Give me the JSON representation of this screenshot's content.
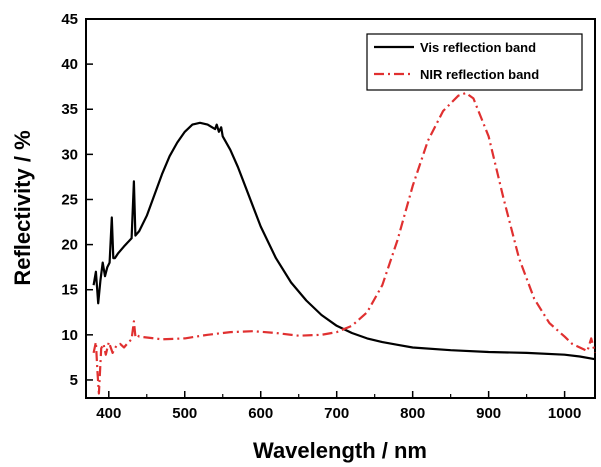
{
  "chart_data": {
    "type": "line",
    "xlabel": "Wavelength / nm",
    "ylabel": "Reflectivity / %",
    "xlim": [
      370,
      1040
    ],
    "ylim": [
      3,
      45
    ],
    "x_ticks": [
      400,
      500,
      600,
      700,
      800,
      900,
      1000
    ],
    "y_ticks": [
      5,
      10,
      15,
      20,
      25,
      30,
      35,
      40,
      45
    ],
    "grid": false,
    "legend_position": "top-right",
    "series": [
      {
        "name": "Vis reflection band",
        "color": "#000000",
        "line_style": "solid",
        "x": [
          380,
          383,
          386,
          389,
          392,
          395,
          398,
          401,
          404,
          406,
          408,
          412,
          420,
          430,
          433,
          435,
          437,
          440,
          450,
          460,
          470,
          480,
          490,
          500,
          510,
          520,
          530,
          540,
          542,
          545,
          548,
          550,
          560,
          570,
          580,
          590,
          600,
          620,
          640,
          660,
          680,
          700,
          720,
          740,
          760,
          780,
          800,
          850,
          900,
          950,
          1000,
          1020,
          1040
        ],
        "y": [
          15.5,
          17.0,
          13.5,
          16.0,
          18.0,
          16.5,
          17.5,
          18.0,
          23.0,
          18.5,
          18.5,
          19.0,
          19.8,
          20.7,
          27.0,
          21.0,
          21.2,
          21.5,
          23.2,
          25.5,
          27.8,
          29.8,
          31.3,
          32.5,
          33.3,
          33.5,
          33.3,
          32.8,
          33.3,
          32.5,
          33.0,
          32.0,
          30.5,
          28.6,
          26.4,
          24.2,
          22.0,
          18.5,
          15.8,
          13.8,
          12.2,
          11.0,
          10.2,
          9.6,
          9.2,
          8.9,
          8.6,
          8.3,
          8.1,
          8.0,
          7.8,
          7.6,
          7.3
        ]
      },
      {
        "name": "NIR reflection band",
        "color": "#e03030",
        "line_style": "dash-dot",
        "x": [
          380,
          383,
          385,
          387,
          390,
          393,
          396,
          400,
          405,
          410,
          415,
          420,
          425,
          430,
          433,
          435,
          437,
          440,
          450,
          470,
          500,
          530,
          560,
          590,
          620,
          650,
          680,
          700,
          720,
          740,
          760,
          780,
          800,
          820,
          840,
          860,
          870,
          880,
          900,
          920,
          940,
          960,
          980,
          1000,
          1010,
          1020,
          1030,
          1035,
          1040
        ],
        "y": [
          8.0,
          9.2,
          6.0,
          3.5,
          8.5,
          9.0,
          7.8,
          9.2,
          8.0,
          8.8,
          9.0,
          8.6,
          9.1,
          9.5,
          11.5,
          9.8,
          10.0,
          9.8,
          9.7,
          9.5,
          9.6,
          10.0,
          10.3,
          10.4,
          10.2,
          9.9,
          10.0,
          10.3,
          11.0,
          12.5,
          15.5,
          20.5,
          26.5,
          31.5,
          34.8,
          36.5,
          36.8,
          36.2,
          32.0,
          25.0,
          18.5,
          14.0,
          11.3,
          9.8,
          9.0,
          8.6,
          8.2,
          9.6,
          8.0
        ]
      }
    ]
  }
}
